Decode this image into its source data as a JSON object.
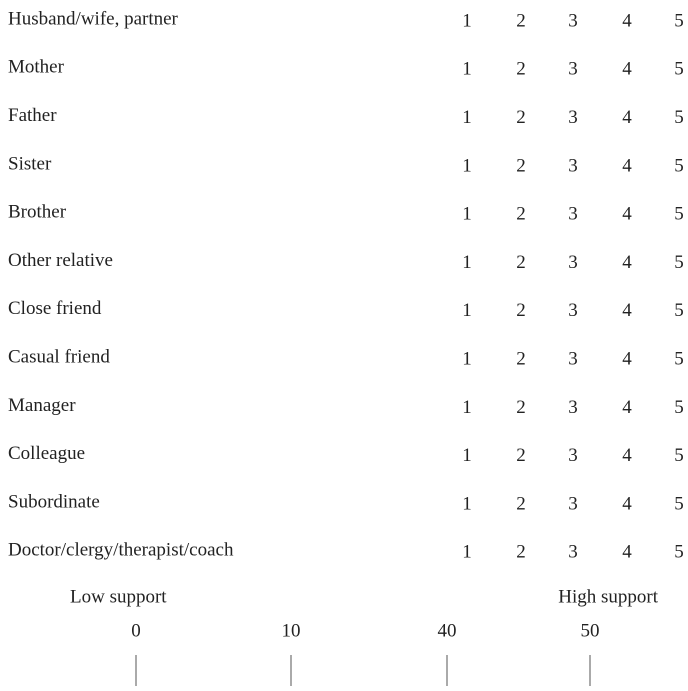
{
  "rows": [
    "Husband/wife, partner",
    "Mother",
    "Father",
    "Sister",
    "Brother",
    "Other relative",
    "Close friend",
    "Casual friend",
    "Manager",
    "Colleague",
    "Subordinate",
    "Doctor/clergy/therapist/coach"
  ],
  "scale": [
    1,
    2,
    3,
    4,
    5
  ],
  "support": {
    "low_label": "Low support",
    "high_label": "High support",
    "ticks": [
      0,
      10,
      40,
      50
    ]
  }
}
